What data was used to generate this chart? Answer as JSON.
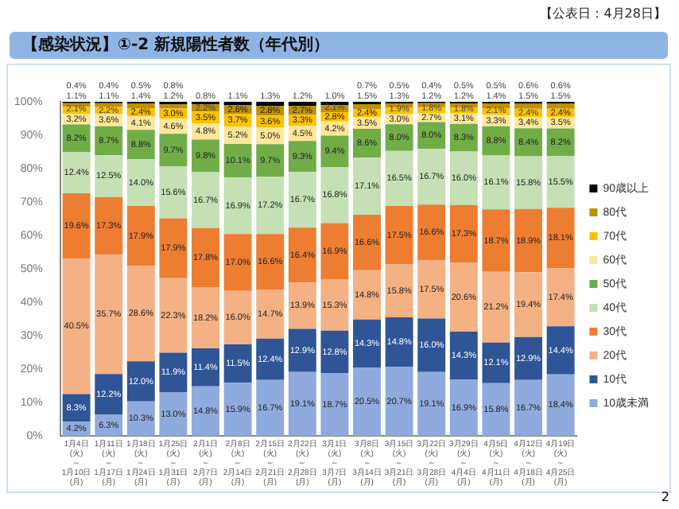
{
  "chart_data": {
    "type": "bar",
    "stacked": true,
    "title": "【感染状況】①-2 新規陽性者数（年代別）",
    "annotations": [
      "【公表日：4月28日】",
      "2"
    ],
    "categories": [
      "1月4日\n(火)\n～\n1月10日\n(月)",
      "1月11日\n(火)\n～\n1月17日\n(月)",
      "1月18日\n(火)\n～\n1月24日\n(月)",
      "1月25日\n(火)\n～\n1月31日\n(月)",
      "2月1日\n(火)\n～\n2月7日\n(月)",
      "2月8日\n(火)\n～\n2月14日\n(月)",
      "2月15日\n(火)\n～\n2月21日\n(月)",
      "2月22日\n(火)\n～\n2月28日\n(月)",
      "3月1日\n(火)\n～\n3月7日\n(月)",
      "3月8日\n(火)\n～\n3月14日\n(月)",
      "3月15日\n(火)\n～\n3月21日\n(月)",
      "3月22日\n(火)\n～\n3月28日\n(月)",
      "3月29日\n(火)\n～\n4月4日\n(月)",
      "4月5日\n(火)\n～\n4月11日\n(月)",
      "4月12日\n(火)\n～\n4月18日\n(月)",
      "4月19日\n(火)\n～\n4月25日\n(月)"
    ],
    "ylim": [
      0,
      100
    ],
    "yticks": [
      {
        "value": 0,
        "label": "0%"
      },
      {
        "value": 10,
        "label": "10%"
      },
      {
        "value": 20,
        "label": "20%"
      },
      {
        "value": 30,
        "label": "30%"
      },
      {
        "value": 40,
        "label": "40%"
      },
      {
        "value": 50,
        "label": "50%"
      },
      {
        "value": 60,
        "label": "60%"
      },
      {
        "value": 70,
        "label": "70%"
      },
      {
        "value": 80,
        "label": "80%"
      },
      {
        "value": 90,
        "label": "90%"
      },
      {
        "value": 100,
        "label": "100%"
      }
    ],
    "grid": false,
    "legend": "right",
    "series": [
      {
        "name": "10歳未満",
        "color": "#8faadc",
        "values": [
          4.2,
          6.3,
          10.3,
          13.0,
          14.8,
          15.9,
          16.7,
          19.1,
          18.7,
          20.5,
          20.7,
          19.1,
          16.9,
          15.8,
          16.7,
          18.4
        ],
        "value_labels": [
          "4.2%",
          "6.3%",
          "10.3%",
          "13.0%",
          "14.8%",
          "15.9%",
          "16.7%",
          "19.1%",
          "18.7%",
          "20.5%",
          "20.7%",
          "19.1%",
          "16.9%",
          "15.8%",
          "16.7%",
          "18.4%"
        ]
      },
      {
        "name": "10代",
        "color": "#2f5597",
        "values": [
          8.3,
          12.2,
          12.0,
          11.9,
          11.4,
          11.5,
          12.4,
          12.9,
          12.8,
          14.3,
          14.8,
          16.0,
          14.3,
          12.1,
          12.9,
          14.4
        ],
        "value_labels": [
          "8.3%",
          "12.2%",
          "12.0%",
          "11.9%",
          "11.4%",
          "11.5%",
          "12.4%",
          "12.9%",
          "12.8%",
          "14.3%",
          "14.8%",
          "16.0%",
          "14.3%",
          "12.1%",
          "12.9%",
          "14.4%"
        ]
      },
      {
        "name": "20代",
        "color": "#f4b183",
        "values": [
          40.5,
          35.7,
          28.6,
          22.3,
          18.2,
          16.0,
          14.7,
          13.9,
          15.3,
          14.8,
          15.8,
          17.5,
          20.6,
          21.2,
          19.4,
          17.4
        ],
        "value_labels": [
          "40.5%",
          "35.7%",
          "28.6%",
          "22.3%",
          "18.2%",
          "16.0%",
          "14.7%",
          "13.9%",
          "15.3%",
          "14.8%",
          "15.8%",
          "17.5%",
          "20.6%",
          "21.2%",
          "19.4%",
          "17.4%"
        ]
      },
      {
        "name": "30代",
        "color": "#ed7d31",
        "values": [
          19.6,
          17.3,
          17.9,
          17.9,
          17.8,
          17.0,
          16.6,
          16.4,
          16.9,
          16.6,
          17.5,
          16.6,
          17.3,
          18.7,
          18.9,
          18.1
        ],
        "value_labels": [
          "19.6%",
          "17.3%",
          "17.9%",
          "17.9%",
          "17.8%",
          "17.0%",
          "16.6%",
          "16.4%",
          "16.9%",
          "16.6%",
          "17.5%",
          "16.6%",
          "17.3%",
          "18.7%",
          "18.9%",
          "18.1%"
        ]
      },
      {
        "name": "40代",
        "color": "#c5e0b4",
        "values": [
          12.4,
          12.5,
          14.0,
          15.6,
          16.7,
          16.9,
          17.2,
          16.7,
          16.8,
          17.1,
          16.5,
          16.7,
          16.0,
          16.1,
          15.8,
          15.5
        ],
        "value_labels": [
          "12.4%",
          "12.5%",
          "14.0%",
          "15.6%",
          "16.7%",
          "16.9%",
          "17.2%",
          "16.7%",
          "16.8%",
          "17.1%",
          "16.5%",
          "16.7%",
          "16.0%",
          "16.1%",
          "15.8%",
          "15.5%"
        ]
      },
      {
        "name": "50代",
        "color": "#70ad47",
        "values": [
          8.2,
          8.7,
          8.8,
          9.7,
          9.8,
          10.1,
          9.7,
          9.3,
          9.4,
          8.6,
          8.0,
          8.0,
          8.3,
          8.8,
          8.4,
          8.2
        ],
        "value_labels": [
          "8.2%",
          "8.7%",
          "8.8%",
          "9.7%",
          "9.8%",
          "10.1%",
          "9.7%",
          "9.3%",
          "9.4%",
          "8.6%",
          "8.0%",
          "8.0%",
          "8.3%",
          "8.8%",
          "8.4%",
          "8.2%"
        ]
      },
      {
        "name": "60代",
        "color": "#ffe699",
        "values": [
          3.2,
          3.6,
          4.1,
          4.6,
          4.8,
          5.2,
          5.0,
          4.5,
          4.2,
          3.5,
          3.0,
          2.7,
          3.1,
          3.3,
          3.4,
          3.5
        ],
        "value_labels": [
          "3.2%",
          "3.6%",
          "4.1%",
          "4.6%",
          "4.8%",
          "5.2%",
          "5.0%",
          "4.5%",
          "4.2%",
          "3.5%",
          "3.0%",
          "2.7%",
          "3.1%",
          "3.3%",
          "3.4%",
          "3.5%"
        ]
      },
      {
        "name": "70代",
        "color": "#ffc000",
        "values": [
          2.1,
          2.2,
          2.4,
          3.0,
          3.5,
          3.7,
          3.6,
          3.3,
          2.8,
          2.4,
          1.9,
          1.8,
          1.8,
          2.1,
          2.4,
          2.4
        ],
        "value_labels": [
          "2.1%",
          "2.2%",
          "2.4%",
          "3.0%",
          "3.5%",
          "3.7%",
          "3.6%",
          "3.3%",
          "2.8%",
          "2.4%",
          "1.9%",
          "1.8%",
          "1.8%",
          "2.1%",
          "2.4%",
          "2.4%"
        ]
      },
      {
        "name": "80代",
        "color": "#bf9000",
        "values": [
          1.1,
          1.1,
          1.4,
          1.2,
          2.2,
          2.6,
          2.8,
          2.7,
          2.1,
          1.5,
          1.3,
          1.2,
          1.2,
          1.4,
          1.5,
          1.5
        ],
        "value_labels": [
          "1.1%",
          "1.1%",
          "1.4%",
          "1.2%",
          "2.2%",
          "2.6%",
          "2.8%",
          "2.7%",
          "2.1%",
          "1.5%",
          "1.3%",
          "1.2%",
          "1.2%",
          "1.4%",
          "1.5%",
          "1.5%"
        ]
      },
      {
        "name": "90歳以上",
        "color": "#000000",
        "values": [
          0.4,
          0.4,
          0.5,
          0.8,
          0.8,
          1.1,
          1.3,
          1.2,
          1.0,
          0.7,
          0.5,
          0.4,
          0.5,
          0.5,
          0.6,
          0.6
        ],
        "value_labels": [
          "0.4%",
          "0.4%",
          "0.5%",
          "0.8%",
          "0.8%",
          "1.1%",
          "1.3%",
          "1.2%",
          "1.0%",
          "0.7%",
          "0.5%",
          "0.4%",
          "0.5%",
          "0.5%",
          "0.6%",
          "0.6%"
        ]
      }
    ]
  }
}
